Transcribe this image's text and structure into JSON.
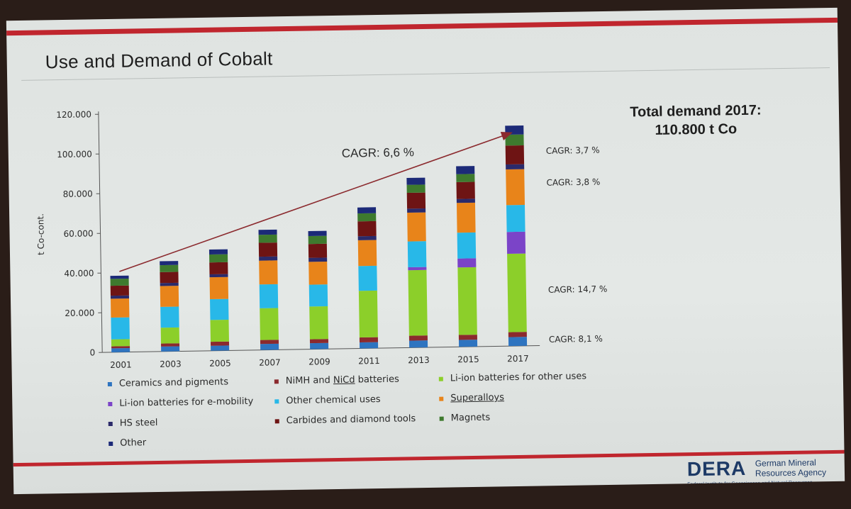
{
  "slide": {
    "title": "Use and Demand of Cobalt",
    "total_line1": "Total demand 2017:",
    "total_line2": "110.800 t Co"
  },
  "logo": {
    "mark": "DERA",
    "name_line1": "German Mineral",
    "name_line2": "Resources Agency",
    "subtitle": "Federal Institute for Geosciences and Natural Resources"
  },
  "colors": {
    "ceramics": "#2e74c0",
    "nimh": "#8b2a2e",
    "li_other": "#8ccf2a",
    "li_emob": "#7b44c8",
    "other_chem": "#28b8e8",
    "superalloys": "#e8841a",
    "hs_steel": "#2b2a6a",
    "carbides": "#6e1414",
    "magnets": "#3e7a2e",
    "other": "#1c2a78"
  },
  "chart_data": {
    "type": "bar",
    "stacked": true,
    "categories": [
      "2001",
      "2003",
      "2005",
      "2007",
      "2009",
      "2011",
      "2013",
      "2015",
      "2017"
    ],
    "ylabel": "t Co-cont.",
    "ylim": [
      0,
      120000
    ],
    "yticks": [
      0,
      20000,
      40000,
      60000,
      80000,
      100000,
      120000
    ],
    "ytick_labels": [
      "0",
      "20.000",
      "40.000",
      "60.000",
      "80.000",
      "100.000",
      "120.000"
    ],
    "legend_placement": "bottom",
    "series": [
      {
        "name": "Ceramics and pigments",
        "color_key": "ceramics",
        "values": [
          2000,
          2500,
          2500,
          3000,
          3000,
          3000,
          3500,
          3500,
          4500
        ]
      },
      {
        "name": "NiMH and NiCd batteries",
        "color_key": "nimh",
        "values": [
          1000,
          1500,
          2000,
          2000,
          2000,
          2500,
          2500,
          2500,
          2500
        ]
      },
      {
        "name": "Li-ion batteries for other uses",
        "color_key": "li_other",
        "values": [
          3500,
          8000,
          11000,
          16000,
          16500,
          23500,
          33000,
          34000,
          39500
        ]
      },
      {
        "name": "Li-ion batteries for e-mobility",
        "color_key": "li_emob",
        "values": [
          0,
          0,
          0,
          0,
          0,
          0,
          1500,
          4500,
          11000
        ]
      },
      {
        "name": "Other chemical uses",
        "color_key": "other_chem",
        "values": [
          11000,
          10500,
          10500,
          12000,
          11000,
          12500,
          13000,
          13000,
          13500
        ]
      },
      {
        "name": "Superalloys",
        "color_key": "superalloys",
        "values": [
          9500,
          10500,
          11000,
          12000,
          11500,
          13000,
          14500,
          15000,
          18000
        ]
      },
      {
        "name": "HS steel",
        "color_key": "hs_steel",
        "values": [
          1500,
          1500,
          1500,
          2000,
          2000,
          2000,
          2000,
          2000,
          2500
        ]
      },
      {
        "name": "Carbides and diamond tools",
        "color_key": "carbides",
        "values": [
          5000,
          5500,
          6000,
          7000,
          7000,
          7500,
          8000,
          8500,
          9500
        ]
      },
      {
        "name": "Magnets",
        "color_key": "magnets",
        "values": [
          3500,
          3500,
          4000,
          4000,
          4000,
          4000,
          4000,
          4000,
          5500
        ]
      },
      {
        "name": "Other",
        "color_key": "other",
        "values": [
          1500,
          2000,
          2500,
          2500,
          2500,
          3000,
          3500,
          4000,
          4500
        ]
      }
    ],
    "annotations": {
      "overall_cagr": "CAGR: 6,6 %",
      "segment_cagr": [
        {
          "text": "CAGR: 3,7 %",
          "y": 98000
        },
        {
          "text": "CAGR: 3,8 %",
          "y": 82000
        },
        {
          "text": "CAGR: 14,7 %",
          "y": 28000
        },
        {
          "text": "CAGR: 8,1 %",
          "y": 3000
        }
      ]
    }
  },
  "legend": {
    "items": [
      {
        "label_pre": "Ceramics and pigments",
        "label_ul": "",
        "label_post": "",
        "color_key": "ceramics"
      },
      {
        "label_pre": "NiMH and ",
        "label_ul": "NiCd",
        "label_post": " batteries",
        "color_key": "nimh"
      },
      {
        "label_pre": "Li-ion batteries for other uses",
        "label_ul": "",
        "label_post": "",
        "color_key": "li_other"
      },
      {
        "label_pre": "Li-ion batteries for e-mobility",
        "label_ul": "",
        "label_post": "",
        "color_key": "li_emob"
      },
      {
        "label_pre": "Other chemical uses",
        "label_ul": "",
        "label_post": "",
        "color_key": "other_chem"
      },
      {
        "label_pre": "",
        "label_ul": "Superalloys",
        "label_post": "",
        "color_key": "superalloys"
      },
      {
        "label_pre": "HS steel",
        "label_ul": "",
        "label_post": "",
        "color_key": "hs_steel"
      },
      {
        "label_pre": "Carbides and diamond tools",
        "label_ul": "",
        "label_post": "",
        "color_key": "carbides"
      },
      {
        "label_pre": "Magnets",
        "label_ul": "",
        "label_post": "",
        "color_key": "magnets"
      },
      {
        "label_pre": "Other",
        "label_ul": "",
        "label_post": "",
        "color_key": "other"
      }
    ]
  }
}
